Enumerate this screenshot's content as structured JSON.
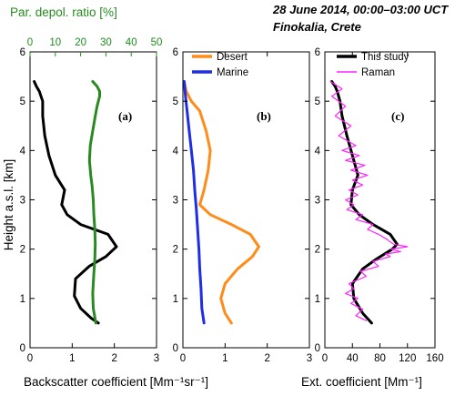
{
  "title": {
    "line1": "28 June 2014, 00:00–03:00 UCT",
    "line2": "Finokalia, Crete"
  },
  "axes": {
    "ylabel": "Height a.s.l. [km]",
    "xlabel_backscatter": "Backscatter coefficient [Mm⁻¹sr⁻¹]",
    "xlabel_extinction": "Ext. coefficient [Mm⁻¹]",
    "xlabel_depol": "Par. depol. ratio [%]"
  },
  "colors": {
    "black": "#000000",
    "green": "#2a8a22",
    "orange": "#ff8c1a",
    "blue": "#1f2ee6",
    "magenta": "#ff22ff"
  },
  "chart_data": [
    {
      "type": "line",
      "panel": "(a)",
      "xlabel": "Backscatter coefficient [Mm⁻¹sr⁻¹]",
      "secondary_xlabel": "Par. depol. ratio [%]",
      "ylabel": "Height a.s.l. [km]",
      "xlim": [
        0,
        3
      ],
      "xticks": [
        "0",
        "1",
        "2",
        "3"
      ],
      "secondary_xlim": [
        0,
        50
      ],
      "secondary_xticks": [
        "0",
        "10",
        "20",
        "30",
        "40",
        "50"
      ],
      "ylim": [
        0,
        6
      ],
      "yticks": [
        "0",
        "1",
        "2",
        "3",
        "4",
        "5",
        "6"
      ],
      "series": [
        {
          "color": "#000000",
          "axis": "bottom",
          "x": [
            1.62,
            1.45,
            1.2,
            1.05,
            1.08,
            1.4,
            1.8,
            2.05,
            1.85,
            1.2,
            0.88,
            0.75,
            0.82,
            0.6,
            0.45,
            0.35,
            0.3,
            0.3,
            0.22,
            0.15,
            0.1
          ],
          "y": [
            0.5,
            0.6,
            0.8,
            1.05,
            1.4,
            1.65,
            1.85,
            2.05,
            2.3,
            2.5,
            2.7,
            2.9,
            3.2,
            3.5,
            3.9,
            4.3,
            4.7,
            5.0,
            5.2,
            5.3,
            5.4
          ]
        },
        {
          "color": "#2a8a22",
          "axis": "top",
          "x": [
            26,
            25,
            24.8,
            25.2,
            25.6,
            25.8,
            25.6,
            25.2,
            25.0,
            24.5,
            24.0,
            23.5,
            23.8,
            24.8,
            25.8,
            26.5,
            27.0,
            27.5,
            27.5,
            26.5,
            24.8
          ],
          "y": [
            0.5,
            0.8,
            1.1,
            1.5,
            1.8,
            2.1,
            2.4,
            2.7,
            3.0,
            3.3,
            3.5,
            3.8,
            4.1,
            4.4,
            4.7,
            4.9,
            5.0,
            5.1,
            5.2,
            5.3,
            5.4
          ]
        }
      ]
    },
    {
      "type": "line",
      "panel": "(b)",
      "xlim": [
        0,
        3
      ],
      "xticks": [
        "0",
        "1",
        "2",
        "3"
      ],
      "ylim": [
        0,
        6
      ],
      "yticks": [
        "0",
        "1",
        "2",
        "3",
        "4",
        "5",
        "6"
      ],
      "series": [
        {
          "name": "Desert",
          "color": "#ff8c1a",
          "x": [
            1.15,
            1.0,
            0.9,
            1.0,
            1.3,
            1.65,
            1.8,
            1.6,
            1.15,
            0.65,
            0.4,
            0.5,
            0.6,
            0.65,
            0.55,
            0.4,
            0.2,
            0.08,
            0.03
          ],
          "y": [
            0.5,
            0.7,
            1.0,
            1.3,
            1.6,
            1.85,
            2.05,
            2.3,
            2.5,
            2.7,
            2.9,
            3.2,
            3.6,
            4.0,
            4.4,
            4.8,
            5.0,
            5.2,
            5.4
          ]
        },
        {
          "name": "Marine",
          "color": "#1f2ee6",
          "x": [
            0.5,
            0.45,
            0.43,
            0.4,
            0.38,
            0.35,
            0.32,
            0.28,
            0.25,
            0.2,
            0.15,
            0.1,
            0.06,
            0.03
          ],
          "y": [
            0.5,
            0.8,
            1.2,
            1.6,
            2.0,
            2.4,
            2.8,
            3.2,
            3.6,
            4.0,
            4.4,
            4.8,
            5.1,
            5.4
          ]
        }
      ]
    },
    {
      "type": "line",
      "panel": "(c)",
      "xlabel": "Ext. coefficient [Mm⁻¹]",
      "xlim": [
        0,
        160
      ],
      "xticks": [
        "0",
        "40",
        "80",
        "120",
        "160"
      ],
      "ylim": [
        0,
        6
      ],
      "yticks": [
        "0",
        "1",
        "2",
        "3",
        "4",
        "5",
        "6"
      ],
      "series": [
        {
          "name": "This study",
          "color": "#000000",
          "x": [
            68,
            55,
            42,
            40,
            55,
            75,
            98,
            105,
            95,
            70,
            50,
            38,
            40,
            48,
            40,
            32,
            25,
            22,
            18,
            15,
            10
          ],
          "y": [
            0.5,
            0.7,
            1.0,
            1.3,
            1.6,
            1.8,
            2.0,
            2.1,
            2.3,
            2.5,
            2.7,
            2.9,
            3.2,
            3.5,
            3.9,
            4.3,
            4.7,
            5.0,
            5.2,
            5.3,
            5.4
          ]
        },
        {
          "name": "Raman",
          "color": "#ff22ff",
          "x": [
            60,
            45,
            55,
            38,
            48,
            30,
            42,
            35,
            60,
            52,
            78,
            70,
            95,
            88,
            110,
            96,
            120,
            100,
            90,
            78,
            62,
            70,
            45,
            55,
            32,
            42,
            30,
            48,
            35,
            55,
            40,
            62,
            38,
            58,
            30,
            50,
            25,
            45,
            20,
            38,
            15,
            30,
            10,
            25,
            8
          ],
          "y": [
            0.55,
            0.65,
            0.78,
            0.9,
            1.0,
            1.1,
            1.2,
            1.3,
            1.45,
            1.55,
            1.65,
            1.75,
            1.85,
            1.9,
            1.95,
            2.0,
            2.05,
            2.1,
            2.2,
            2.3,
            2.4,
            2.5,
            2.6,
            2.7,
            2.8,
            2.9,
            3.0,
            3.1,
            3.2,
            3.3,
            3.4,
            3.5,
            3.6,
            3.7,
            3.8,
            3.9,
            4.0,
            4.1,
            4.3,
            4.5,
            4.7,
            4.9,
            5.1,
            5.25,
            5.4
          ]
        }
      ]
    }
  ]
}
